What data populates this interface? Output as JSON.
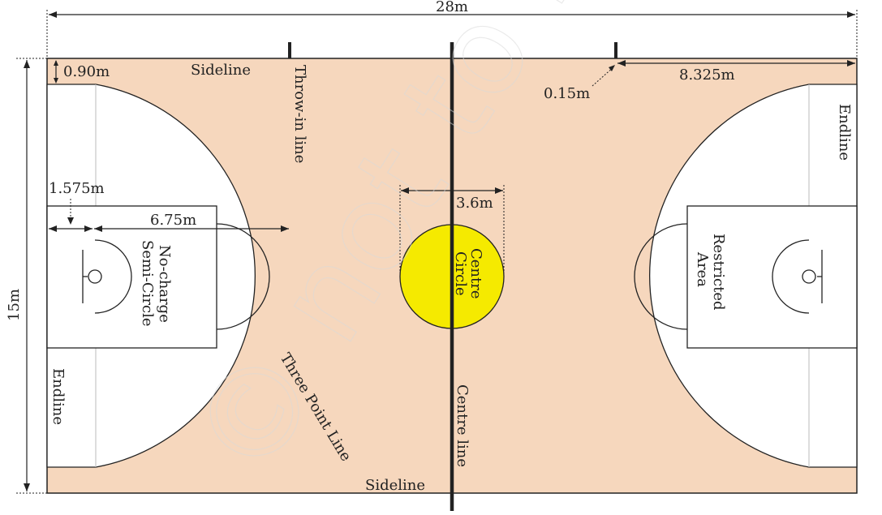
{
  "diagram": {
    "labels": {
      "overall_length": "28m",
      "overall_width": "15m",
      "sideline_offset": "0.90m",
      "sideline_top": "Sideline",
      "sideline_bottom": "Sideline",
      "throw_in_line": "Throw-in line",
      "throw_in_width": "0.15m",
      "throw_in_distance": "8.325m",
      "endline_right": "Endline",
      "endline_left": "Endline",
      "backboard_offset": "1.575m",
      "three_point_radius": "6.75m",
      "no_charge_line1": "No-charge",
      "no_charge_line2": "Semi-Circle",
      "centre_circle_diameter": "3.6m",
      "centre_circle_line1": "Centre",
      "centre_circle_line2": "Circle",
      "restricted_area_line1": "Restricted",
      "restricted_area_line2": "Area",
      "three_point_line": "Three Point Line",
      "centre_line": "Centre line"
    },
    "watermark": "© not to be republished",
    "colors": {
      "court_floor": "#f6d7bd",
      "court_inner": "#ffffff",
      "centre_circle": "#f5ea00",
      "lines": "#222222"
    }
  }
}
